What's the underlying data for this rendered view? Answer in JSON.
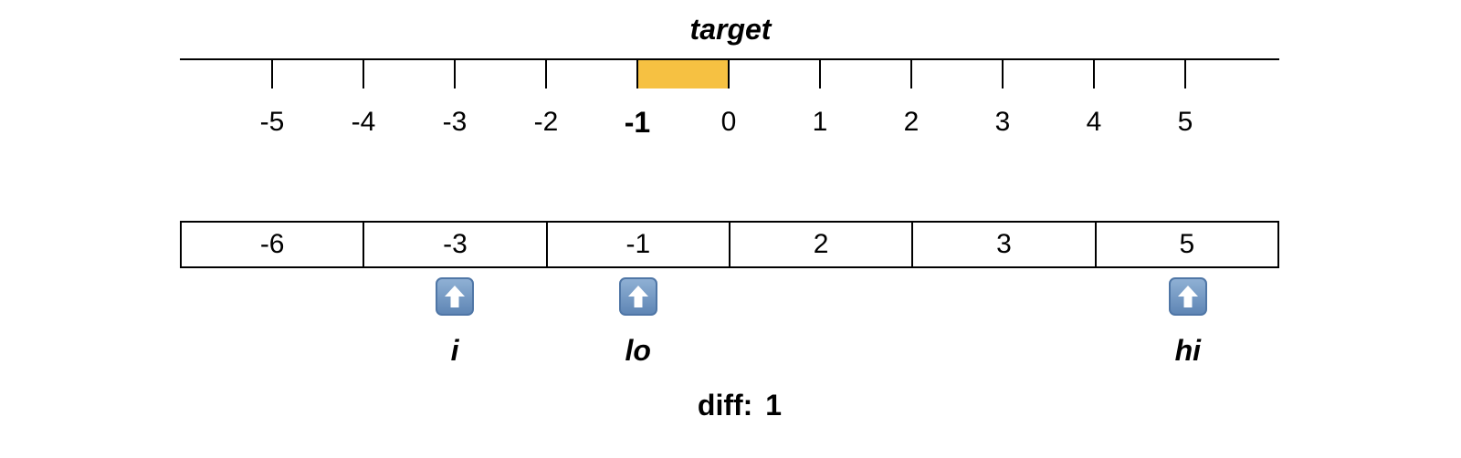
{
  "number_line": {
    "title": "target",
    "ticks": [
      "-5",
      "-4",
      "-3",
      "-2",
      "-1",
      "0",
      "1",
      "2",
      "3",
      "4",
      "5"
    ],
    "highlight_from": -1,
    "highlight_to": 0,
    "highlight_color": "#f6c142",
    "bold_tick": "-1"
  },
  "array": {
    "values": [
      "-6",
      "-3",
      "-1",
      "2",
      "3",
      "5"
    ]
  },
  "pointers": [
    {
      "label": "i",
      "index": 1
    },
    {
      "label": "lo",
      "index": 2
    },
    {
      "label": "hi",
      "index": 5
    }
  ],
  "diff": {
    "label": "diff:",
    "value": "1"
  },
  "colors": {
    "arrow_fill": "#6f95c4",
    "line": "#000000"
  }
}
